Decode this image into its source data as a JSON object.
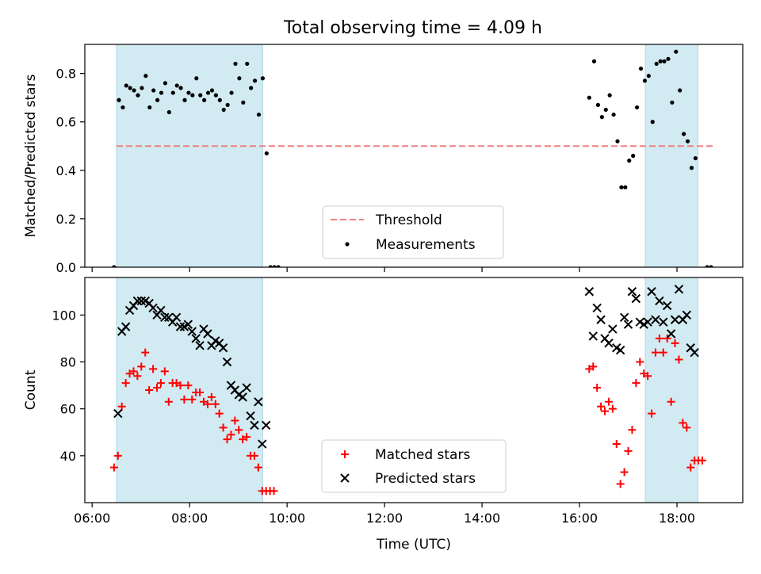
{
  "title": "Total observing time = 4.09 h",
  "colors": {
    "span_fill": "#add8e6",
    "threshold": "#f08080",
    "measurement": "#000000",
    "matched": "#ff0000",
    "predicted": "#000000"
  },
  "chart_data": [
    {
      "type": "scatter",
      "ylabel": "Matched/Predicted stars",
      "xlim": [
        5.85,
        19.35
      ],
      "ylim": [
        0,
        0.92
      ],
      "y_ticks": [
        "0.0",
        "0.2",
        "0.4",
        "0.6",
        "0.8"
      ],
      "y_tick_values": [
        0,
        0.2,
        0.4,
        0.6,
        0.8
      ],
      "shaded_spans": [
        [
          6.5,
          9.5
        ],
        [
          17.35,
          18.43
        ]
      ],
      "legend_position": "bottom-center",
      "threshold": {
        "label": "Threshold",
        "value": 0.5,
        "x_range": [
          6.5,
          18.75
        ]
      },
      "measurements": {
        "label": "Measurements",
        "points": [
          [
            6.45,
            0
          ],
          [
            6.55,
            0.69
          ],
          [
            6.63,
            0.66
          ],
          [
            6.7,
            0.75
          ],
          [
            6.78,
            0.74
          ],
          [
            6.86,
            0.73
          ],
          [
            6.94,
            0.71
          ],
          [
            7.02,
            0.74
          ],
          [
            7.1,
            0.79
          ],
          [
            7.18,
            0.66
          ],
          [
            7.26,
            0.73
          ],
          [
            7.34,
            0.69
          ],
          [
            7.42,
            0.72
          ],
          [
            7.5,
            0.76
          ],
          [
            7.58,
            0.64
          ],
          [
            7.66,
            0.72
          ],
          [
            7.74,
            0.75
          ],
          [
            7.82,
            0.74
          ],
          [
            7.9,
            0.69
          ],
          [
            7.98,
            0.72
          ],
          [
            8.06,
            0.71
          ],
          [
            8.14,
            0.78
          ],
          [
            8.22,
            0.71
          ],
          [
            8.3,
            0.69
          ],
          [
            8.38,
            0.72
          ],
          [
            8.46,
            0.73
          ],
          [
            8.54,
            0.71
          ],
          [
            8.62,
            0.69
          ],
          [
            8.7,
            0.65
          ],
          [
            8.78,
            0.67
          ],
          [
            8.86,
            0.72
          ],
          [
            8.94,
            0.84
          ],
          [
            9.02,
            0.78
          ],
          [
            9.1,
            0.68
          ],
          [
            9.18,
            0.84
          ],
          [
            9.26,
            0.74
          ],
          [
            9.34,
            0.77
          ],
          [
            9.42,
            0.63
          ],
          [
            9.5,
            0.78
          ],
          [
            9.58,
            0.47
          ],
          [
            9.66,
            0
          ],
          [
            9.74,
            0
          ],
          [
            9.82,
            0
          ],
          [
            16.2,
            0.7
          ],
          [
            16.3,
            0.85
          ],
          [
            16.38,
            0.67
          ],
          [
            16.46,
            0.62
          ],
          [
            16.54,
            0.65
          ],
          [
            16.62,
            0.71
          ],
          [
            16.7,
            0.63
          ],
          [
            16.78,
            0.52
          ],
          [
            16.86,
            0.33
          ],
          [
            16.94,
            0.33
          ],
          [
            17.02,
            0.44
          ],
          [
            17.1,
            0.46
          ],
          [
            17.18,
            0.66
          ],
          [
            17.26,
            0.82
          ],
          [
            17.34,
            0.77
          ],
          [
            17.42,
            0.79
          ],
          [
            17.5,
            0.6
          ],
          [
            17.58,
            0.84
          ],
          [
            17.66,
            0.85
          ],
          [
            17.74,
            0.85
          ],
          [
            17.82,
            0.86
          ],
          [
            17.9,
            0.68
          ],
          [
            17.98,
            0.89
          ],
          [
            18.06,
            0.73
          ],
          [
            18.14,
            0.55
          ],
          [
            18.22,
            0.52
          ],
          [
            18.3,
            0.41
          ],
          [
            18.38,
            0.45
          ],
          [
            18.62,
            0
          ],
          [
            18.7,
            0
          ]
        ]
      }
    },
    {
      "type": "scatter",
      "ylabel": "Count",
      "xlabel": "Time (UTC)",
      "xlim": [
        5.85,
        19.35
      ],
      "ylim": [
        20,
        116
      ],
      "x_ticks": [
        "06:00",
        "08:00",
        "10:00",
        "12:00",
        "14:00",
        "16:00",
        "18:00"
      ],
      "x_tick_values": [
        6,
        8,
        10,
        12,
        14,
        16,
        18
      ],
      "y_ticks": [
        "40",
        "60",
        "80",
        "100"
      ],
      "y_tick_values": [
        40,
        60,
        80,
        100
      ],
      "shaded_spans": [
        [
          6.5,
          9.5
        ],
        [
          17.35,
          18.43
        ]
      ],
      "legend_position": "bottom-center",
      "series": [
        {
          "name": "Matched stars",
          "marker": "plus",
          "points": [
            [
              6.45,
              35
            ],
            [
              6.53,
              40
            ],
            [
              6.61,
              61
            ],
            [
              6.69,
              71
            ],
            [
              6.77,
              75
            ],
            [
              6.85,
              76
            ],
            [
              6.93,
              74
            ],
            [
              7.01,
              78
            ],
            [
              7.09,
              84
            ],
            [
              7.17,
              68
            ],
            [
              7.25,
              77
            ],
            [
              7.33,
              69
            ],
            [
              7.41,
              71
            ],
            [
              7.49,
              76
            ],
            [
              7.57,
              63
            ],
            [
              7.65,
              71
            ],
            [
              7.73,
              71
            ],
            [
              7.81,
              70
            ],
            [
              7.89,
              64
            ],
            [
              7.97,
              70
            ],
            [
              8.05,
              64
            ],
            [
              8.13,
              67
            ],
            [
              8.21,
              67
            ],
            [
              8.29,
              63
            ],
            [
              8.37,
              62
            ],
            [
              8.45,
              65
            ],
            [
              8.53,
              62
            ],
            [
              8.61,
              58
            ],
            [
              8.69,
              52
            ],
            [
              8.77,
              47
            ],
            [
              8.85,
              49
            ],
            [
              8.93,
              55
            ],
            [
              9.01,
              51
            ],
            [
              9.09,
              47
            ],
            [
              9.17,
              48
            ],
            [
              9.25,
              40
            ],
            [
              9.33,
              40
            ],
            [
              9.41,
              35
            ],
            [
              9.49,
              25
            ],
            [
              9.57,
              25
            ],
            [
              9.65,
              25
            ],
            [
              9.73,
              25
            ],
            [
              16.2,
              77
            ],
            [
              16.28,
              78
            ],
            [
              16.36,
              69
            ],
            [
              16.44,
              61
            ],
            [
              16.52,
              59
            ],
            [
              16.6,
              63
            ],
            [
              16.68,
              60
            ],
            [
              16.76,
              45
            ],
            [
              16.84,
              28
            ],
            [
              16.92,
              33
            ],
            [
              17.0,
              42
            ],
            [
              17.08,
              51
            ],
            [
              17.16,
              71
            ],
            [
              17.24,
              80
            ],
            [
              17.32,
              75
            ],
            [
              17.4,
              74
            ],
            [
              17.48,
              58
            ],
            [
              17.56,
              84
            ],
            [
              17.64,
              90
            ],
            [
              17.72,
              84
            ],
            [
              17.8,
              90
            ],
            [
              17.88,
              63
            ],
            [
              17.96,
              88
            ],
            [
              18.04,
              81
            ],
            [
              18.12,
              54
            ],
            [
              18.2,
              52
            ],
            [
              18.28,
              35
            ],
            [
              18.36,
              38
            ],
            [
              18.44,
              38
            ],
            [
              18.52,
              38
            ]
          ]
        },
        {
          "name": "Predicted stars",
          "marker": "x",
          "points": [
            [
              6.53,
              58
            ],
            [
              6.61,
              93
            ],
            [
              6.69,
              95
            ],
            [
              6.77,
              102
            ],
            [
              6.85,
              104
            ],
            [
              6.93,
              106
            ],
            [
              7.01,
              106
            ],
            [
              7.09,
              106
            ],
            [
              7.17,
              105
            ],
            [
              7.25,
              103
            ],
            [
              7.33,
              100
            ],
            [
              7.41,
              102
            ],
            [
              7.49,
              99
            ],
            [
              7.57,
              99
            ],
            [
              7.65,
              97
            ],
            [
              7.73,
              99
            ],
            [
              7.81,
              95
            ],
            [
              7.89,
              95
            ],
            [
              7.97,
              96
            ],
            [
              8.05,
              93
            ],
            [
              8.13,
              90
            ],
            [
              8.21,
              87
            ],
            [
              8.29,
              94
            ],
            [
              8.37,
              92
            ],
            [
              8.45,
              87
            ],
            [
              8.53,
              89
            ],
            [
              8.61,
              88
            ],
            [
              8.69,
              86
            ],
            [
              8.77,
              80
            ],
            [
              8.85,
              70
            ],
            [
              8.93,
              68
            ],
            [
              9.01,
              66
            ],
            [
              9.09,
              65
            ],
            [
              9.17,
              69
            ],
            [
              9.25,
              57
            ],
            [
              9.33,
              53
            ],
            [
              9.41,
              63
            ],
            [
              9.49,
              45
            ],
            [
              9.57,
              53
            ],
            [
              16.2,
              110
            ],
            [
              16.28,
              91
            ],
            [
              16.36,
              103
            ],
            [
              16.44,
              98
            ],
            [
              16.52,
              90
            ],
            [
              16.6,
              88
            ],
            [
              16.68,
              94
            ],
            [
              16.76,
              86
            ],
            [
              16.84,
              85
            ],
            [
              16.92,
              99
            ],
            [
              17.0,
              96
            ],
            [
              17.08,
              110
            ],
            [
              17.16,
              107
            ],
            [
              17.24,
              97
            ],
            [
              17.32,
              96
            ],
            [
              17.4,
              97
            ],
            [
              17.48,
              110
            ],
            [
              17.56,
              98
            ],
            [
              17.64,
              106
            ],
            [
              17.72,
              97
            ],
            [
              17.8,
              104
            ],
            [
              17.88,
              92
            ],
            [
              17.96,
              98
            ],
            [
              18.04,
              111
            ],
            [
              18.12,
              98
            ],
            [
              18.2,
              100
            ],
            [
              18.28,
              86
            ],
            [
              18.36,
              84
            ]
          ]
        }
      ]
    }
  ]
}
